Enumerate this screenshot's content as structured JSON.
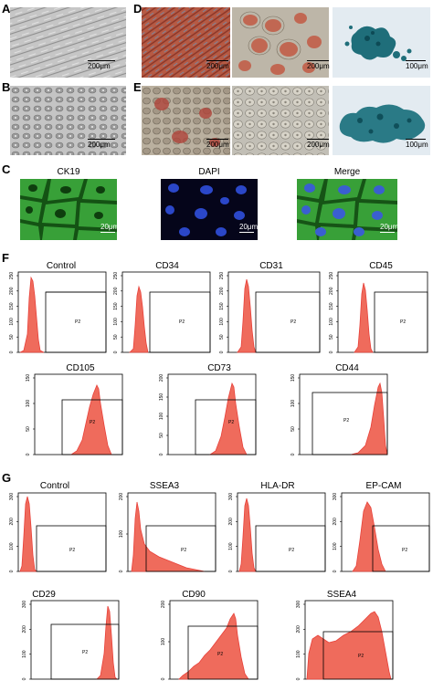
{
  "panels": {
    "A": {
      "label": "A",
      "scale": "200μm"
    },
    "B": {
      "label": "B",
      "scale": "200μm"
    },
    "C": {
      "label": "C",
      "titles": [
        "CK19",
        "DAPI",
        "Merge"
      ],
      "scales": [
        "20μm",
        "20μm",
        "20μm"
      ]
    },
    "D": {
      "label": "D",
      "scales": [
        "200μm",
        "200μm",
        "100μm"
      ]
    },
    "E": {
      "label": "E",
      "scales": [
        "200μm",
        "200μm",
        "100μm"
      ]
    },
    "F": {
      "label": "F",
      "gate": "P2",
      "titles": [
        "Control",
        "CD34",
        "CD31",
        "CD45",
        "CD105",
        "CD73",
        "CD44"
      ],
      "yticks_a": [
        "0",
        "50",
        "100",
        "150",
        "200",
        "250"
      ],
      "yticks_b": [
        "0",
        "50",
        "100",
        "150"
      ],
      "yticks_c": [
        "0",
        "50",
        "100",
        "150",
        "200"
      ],
      "yticks_d": [
        "0",
        "50",
        "100",
        "150"
      ]
    },
    "G": {
      "label": "G",
      "gate": "P2",
      "titles": [
        "Control",
        "SSEA3",
        "HLA-DR",
        "EP-CAM",
        "CD29",
        "CD90",
        "SSEA4"
      ],
      "yticks_a": [
        "0",
        "100",
        "200",
        "300"
      ],
      "yticks_b": [
        "0",
        "100",
        "200"
      ],
      "yticks_c": [
        "0",
        "100",
        "200",
        "300"
      ]
    }
  },
  "colors": {
    "hist": "#e8413a",
    "hist_fill": "#ef6b5c",
    "gate": "#000000"
  }
}
